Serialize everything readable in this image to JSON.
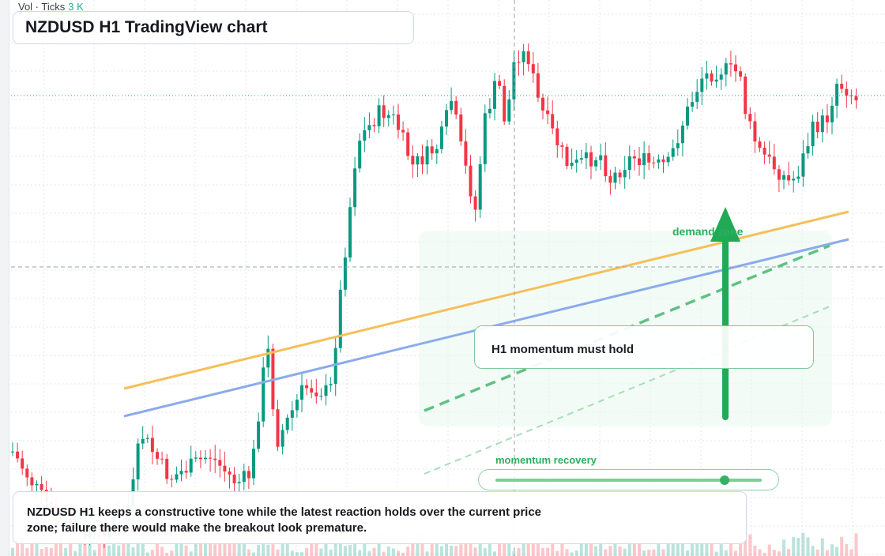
{
  "volume_legend": {
    "label": "Vol · Ticks",
    "value": "3 K"
  },
  "title": "NZDUSD H1 TradingView chart",
  "annotations": {
    "note": "H1 momentum must hold",
    "zone_label": "demand zone",
    "momentum_label": "momentum recovery",
    "momentum_level": 0.87
  },
  "caption": "NZDUSD H1 keeps a constructive tone while the latest reaction holds over the current price zone; failure there would make the breakout look premature.",
  "colors": {
    "up": "#089981",
    "down": "#f23645",
    "trend_orange": "#f5bf5a",
    "trend_blue": "#8aabec",
    "green_accent": "#22a955",
    "grid": "#e4e7eb"
  }
}
